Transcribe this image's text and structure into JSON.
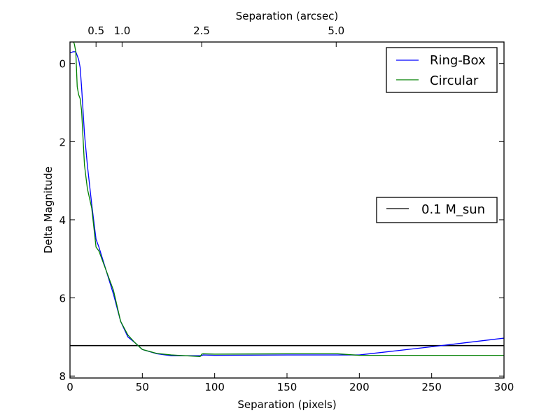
{
  "chart_data": {
    "type": "line",
    "xlabel": "Separation (pixels)",
    "ylabel": "Delta Magnitude",
    "top_xlabel": "Separation (arcsec)",
    "xlim": [
      0,
      300
    ],
    "ylim": [
      8.05,
      -0.55
    ],
    "y_inverted": true,
    "x_ticks": [
      0,
      50,
      100,
      150,
      200,
      250,
      300
    ],
    "x_tick_labels": [
      "0",
      "50",
      "100",
      "150",
      "200",
      "250",
      "300"
    ],
    "y_ticks": [
      0,
      2,
      4,
      6,
      8
    ],
    "y_tick_labels": [
      "0",
      "2",
      "4",
      "6",
      "8"
    ],
    "top_ticks": [
      {
        "label": "0.5",
        "x": 18
      },
      {
        "label": "1.0",
        "x": 36
      },
      {
        "label": "2.5",
        "x": 91
      },
      {
        "label": "5.0",
        "x": 184
      }
    ],
    "series": [
      {
        "name": "Ring-Box",
        "color": "#0000ff",
        "x": [
          0,
          1,
          2,
          3,
          4,
          5,
          6,
          7,
          8,
          10,
          12,
          15,
          18,
          20,
          25,
          30,
          35,
          40,
          45,
          50,
          60,
          70,
          80,
          90,
          91,
          92,
          100,
          150,
          185,
          200,
          250,
          300
        ],
        "y": [
          -0.28,
          -0.28,
          -0.3,
          -0.3,
          -0.3,
          -0.2,
          -0.1,
          0.1,
          0.6,
          1.8,
          2.6,
          3.6,
          4.5,
          4.7,
          5.3,
          5.9,
          6.6,
          7.0,
          7.15,
          7.32,
          7.43,
          7.48,
          7.48,
          7.48,
          7.48,
          7.46,
          7.47,
          7.46,
          7.46,
          7.46,
          7.25,
          7.03
        ]
      },
      {
        "name": "Circular",
        "color": "#008000",
        "x": [
          0,
          1,
          2,
          3,
          4,
          5,
          6,
          7,
          8,
          10,
          12,
          15,
          18,
          20,
          25,
          30,
          35,
          40,
          45,
          50,
          60,
          70,
          80,
          90,
          91,
          92,
          100,
          150,
          185,
          200,
          250,
          300
        ],
        "y": [
          -0.6,
          -0.6,
          -0.6,
          -0.5,
          -0.3,
          0.6,
          0.8,
          0.9,
          1.2,
          2.6,
          3.2,
          3.7,
          4.7,
          4.8,
          5.3,
          5.8,
          6.6,
          6.95,
          7.15,
          7.32,
          7.42,
          7.46,
          7.48,
          7.5,
          7.44,
          7.43,
          7.44,
          7.43,
          7.43,
          7.47,
          7.47,
          7.47
        ]
      }
    ],
    "reference_line": {
      "name": "0.1 M_sun",
      "y": 7.22,
      "color": "#000000"
    },
    "legends": [
      {
        "placement": "top-right",
        "entries": [
          "Ring-Box",
          "Circular"
        ]
      },
      {
        "placement": "center-right",
        "entries": [
          "0.1 M_sun"
        ]
      }
    ],
    "grid": false
  }
}
